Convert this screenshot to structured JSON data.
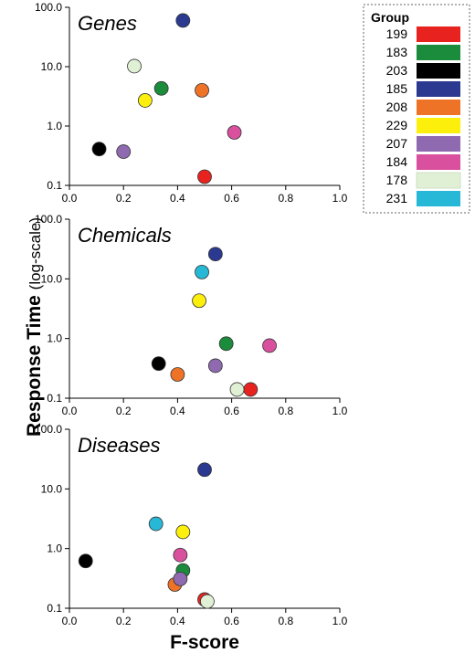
{
  "chart_data": {
    "type": "scatter",
    "y_label": "Response Time",
    "y_label_suffix": "(log-scale)",
    "x_label": "F-score",
    "xlim": [
      0,
      1
    ],
    "ylim": [
      0.1,
      100
    ],
    "y_scale": "log",
    "x_ticks": [
      "0.0",
      "0.2",
      "0.4",
      "0.6",
      "0.8",
      "1.0"
    ],
    "y_ticks": [
      "0.1",
      "1.0",
      "10.0",
      "100.0"
    ],
    "legend": {
      "title": "Group",
      "placement": "top-right",
      "items": [
        {
          "label": "199",
          "color": "#e8231f"
        },
        {
          "label": "183",
          "color": "#1a8c3c"
        },
        {
          "label": "203",
          "color": "#000000"
        },
        {
          "label": "185",
          "color": "#2b3990"
        },
        {
          "label": "208",
          "color": "#ee7326"
        },
        {
          "label": "229",
          "color": "#fcef0b"
        },
        {
          "label": "207",
          "color": "#8f6ab0"
        },
        {
          "label": "184",
          "color": "#d9519e"
        },
        {
          "label": "178",
          "color": "#dff0d4"
        },
        {
          "label": "231",
          "color": "#27b8d8"
        }
      ]
    },
    "panels": [
      {
        "title": "Genes",
        "points": [
          {
            "group": "199",
            "x": 0.5,
            "y": 0.14
          },
          {
            "group": "183",
            "x": 0.34,
            "y": 4.3
          },
          {
            "group": "203",
            "x": 0.11,
            "y": 0.41
          },
          {
            "group": "185",
            "x": 0.42,
            "y": 60
          },
          {
            "group": "208",
            "x": 0.49,
            "y": 4.0
          },
          {
            "group": "229",
            "x": 0.28,
            "y": 2.7
          },
          {
            "group": "207",
            "x": 0.2,
            "y": 0.37
          },
          {
            "group": "184",
            "x": 0.61,
            "y": 0.78
          },
          {
            "group": "178",
            "x": 0.24,
            "y": 10.2
          }
        ]
      },
      {
        "title": "Chemicals",
        "points": [
          {
            "group": "199",
            "x": 0.67,
            "y": 0.14
          },
          {
            "group": "183",
            "x": 0.58,
            "y": 0.82
          },
          {
            "group": "203",
            "x": 0.33,
            "y": 0.38
          },
          {
            "group": "185",
            "x": 0.54,
            "y": 26
          },
          {
            "group": "208",
            "x": 0.4,
            "y": 0.25
          },
          {
            "group": "229",
            "x": 0.48,
            "y": 4.3
          },
          {
            "group": "207",
            "x": 0.54,
            "y": 0.35
          },
          {
            "group": "184",
            "x": 0.74,
            "y": 0.76
          },
          {
            "group": "178",
            "x": 0.62,
            "y": 0.14
          },
          {
            "group": "231",
            "x": 0.49,
            "y": 13
          }
        ]
      },
      {
        "title": "Diseases",
        "points": [
          {
            "group": "199",
            "x": 0.5,
            "y": 0.14
          },
          {
            "group": "183",
            "x": 0.42,
            "y": 0.43
          },
          {
            "group": "203",
            "x": 0.06,
            "y": 0.62
          },
          {
            "group": "185",
            "x": 0.5,
            "y": 21
          },
          {
            "group": "208",
            "x": 0.39,
            "y": 0.25
          },
          {
            "group": "229",
            "x": 0.42,
            "y": 1.9
          },
          {
            "group": "207",
            "x": 0.41,
            "y": 0.31
          },
          {
            "group": "184",
            "x": 0.41,
            "y": 0.78
          },
          {
            "group": "178",
            "x": 0.51,
            "y": 0.13
          },
          {
            "group": "231",
            "x": 0.32,
            "y": 2.6
          }
        ]
      }
    ]
  }
}
